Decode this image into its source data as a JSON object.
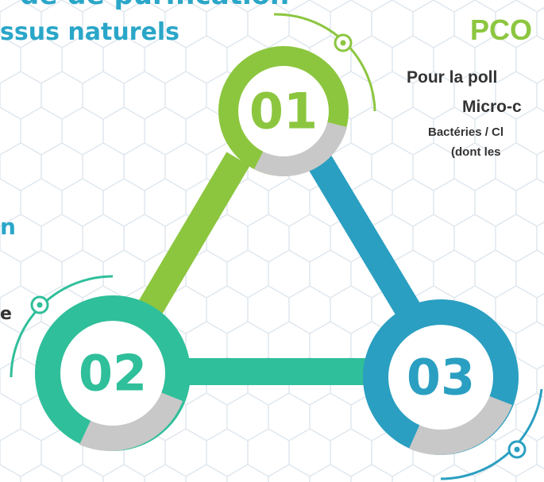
{
  "header": {
    "title_lines": [
      "de de purification",
      "ssus naturels"
    ],
    "left_fragments": [
      "n",
      "e"
    ]
  },
  "right_panel": {
    "title": "PCO",
    "lines": [
      "Pour la poll",
      "Micro-c",
      "Bactéries / Cl",
      "(dont les"
    ]
  },
  "steps": [
    {
      "label": "01"
    },
    {
      "label": "02"
    },
    {
      "label": "03"
    }
  ]
}
